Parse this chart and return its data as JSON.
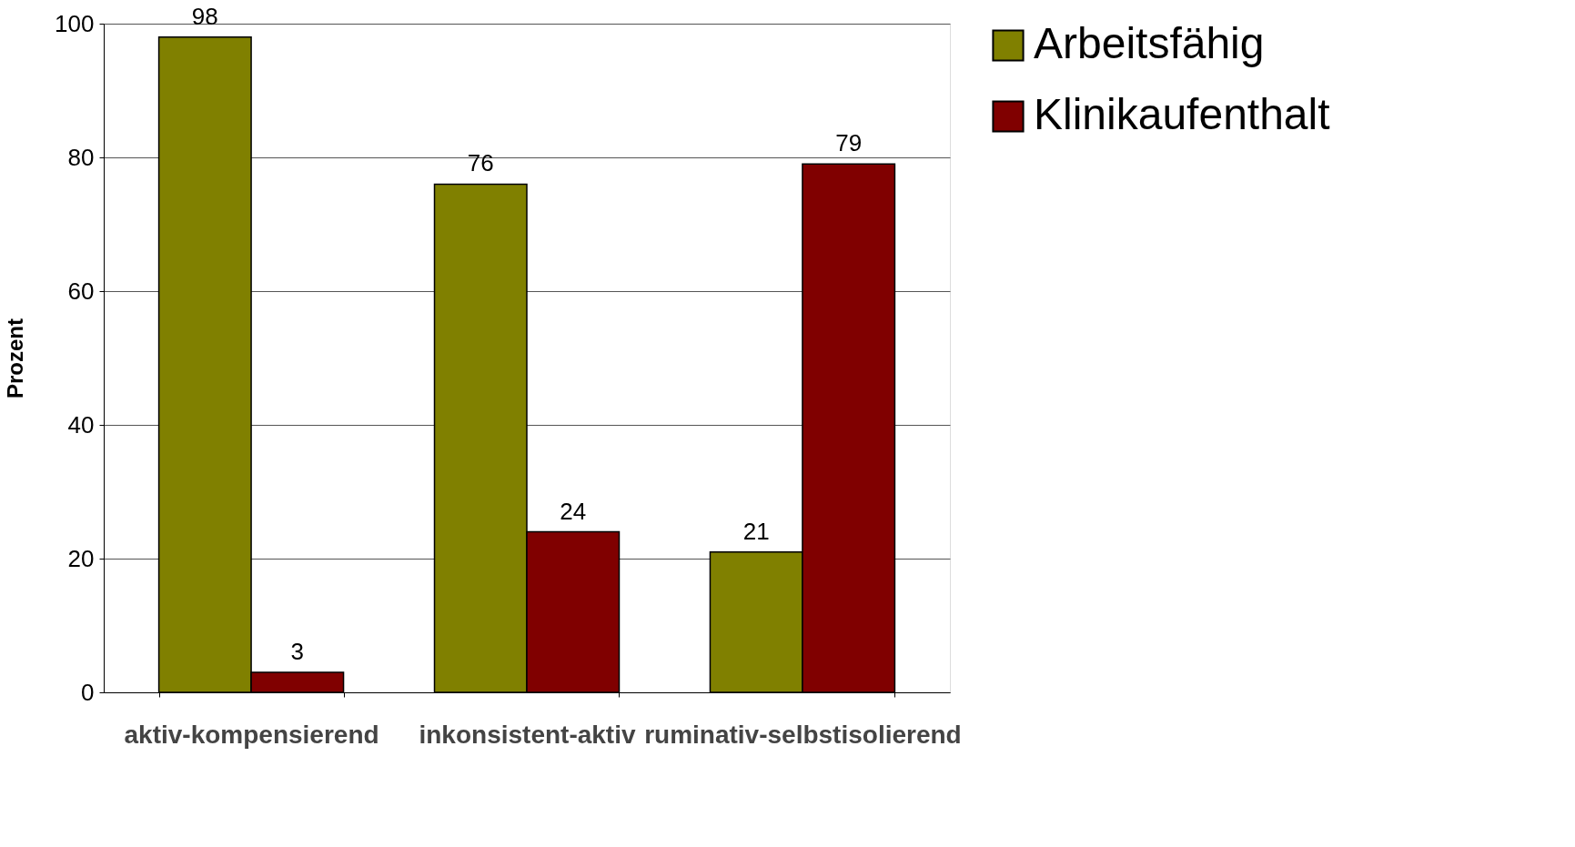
{
  "chart_data": {
    "type": "bar",
    "ylabel": "Prozent",
    "categories": [
      "aktiv-kompensierend",
      "inkonsistent-aktiv",
      "ruminativ-selbstisolierend"
    ],
    "series": [
      {
        "name": "Arbeitsfähig",
        "color": "#808000",
        "values": [
          98,
          76,
          21
        ]
      },
      {
        "name": "Klinikaufenthalt",
        "color": "#800000",
        "values": [
          3,
          24,
          79
        ]
      }
    ],
    "ylim": [
      0,
      100
    ],
    "yticks": [
      0,
      20,
      40,
      60,
      80,
      100
    ],
    "grid": "y",
    "legend": "right",
    "data_labels": true
  }
}
